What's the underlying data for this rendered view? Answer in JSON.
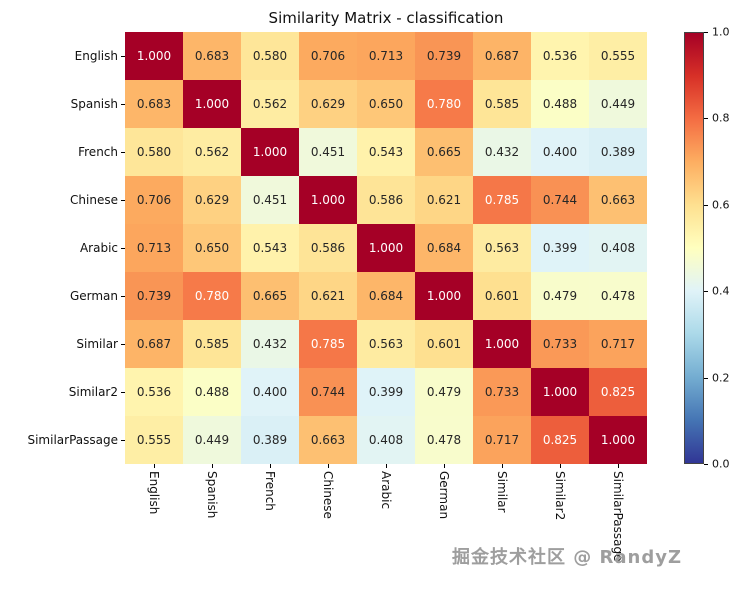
{
  "figure": {
    "title": "Similarity Matrix - classification",
    "watermark": "掘金技术社区 @ RandyZ"
  },
  "chart_data": {
    "type": "heatmap",
    "title": "Similarity Matrix - classification",
    "categories": [
      "English",
      "Spanish",
      "French",
      "Chinese",
      "Arabic",
      "German",
      "Similar",
      "Similar2",
      "SimilarPassage"
    ],
    "matrix": [
      [
        1.0,
        0.683,
        0.58,
        0.706,
        0.713,
        0.739,
        0.687,
        0.536,
        0.555
      ],
      [
        0.683,
        1.0,
        0.562,
        0.629,
        0.65,
        0.78,
        0.585,
        0.488,
        0.449
      ],
      [
        0.58,
        0.562,
        1.0,
        0.451,
        0.543,
        0.665,
        0.432,
        0.4,
        0.389
      ],
      [
        0.706,
        0.629,
        0.451,
        1.0,
        0.586,
        0.621,
        0.785,
        0.744,
        0.663
      ],
      [
        0.713,
        0.65,
        0.543,
        0.586,
        1.0,
        0.684,
        0.563,
        0.399,
        0.408
      ],
      [
        0.739,
        0.78,
        0.665,
        0.621,
        0.684,
        1.0,
        0.601,
        0.479,
        0.478
      ],
      [
        0.687,
        0.585,
        0.432,
        0.785,
        0.563,
        0.601,
        1.0,
        0.733,
        0.717
      ],
      [
        0.536,
        0.488,
        0.4,
        0.744,
        0.399,
        0.479,
        0.733,
        1.0,
        0.825
      ],
      [
        0.555,
        0.449,
        0.389,
        0.663,
        0.408,
        0.478,
        0.717,
        0.825,
        1.0
      ]
    ],
    "vmin": 0.0,
    "vmax": 1.0,
    "value_format": "3_decimals",
    "annotations": true,
    "colormap": "RdYlBu_r",
    "colormap_anchors": [
      [
        0.0,
        "#313695"
      ],
      [
        0.1,
        "#4575b4"
      ],
      [
        0.2,
        "#74add1"
      ],
      [
        0.3,
        "#abd9e9"
      ],
      [
        0.4,
        "#e0f3f8"
      ],
      [
        0.5,
        "#ffffbf"
      ],
      [
        0.6,
        "#fee090"
      ],
      [
        0.7,
        "#fdae61"
      ],
      [
        0.8,
        "#f46d43"
      ],
      [
        0.9,
        "#d73027"
      ],
      [
        1.0,
        "#a50026"
      ]
    ],
    "colorbar_ticks": [
      0.0,
      0.2,
      0.4,
      0.6,
      0.8,
      1.0
    ],
    "legend_position": "right",
    "grid": false
  }
}
